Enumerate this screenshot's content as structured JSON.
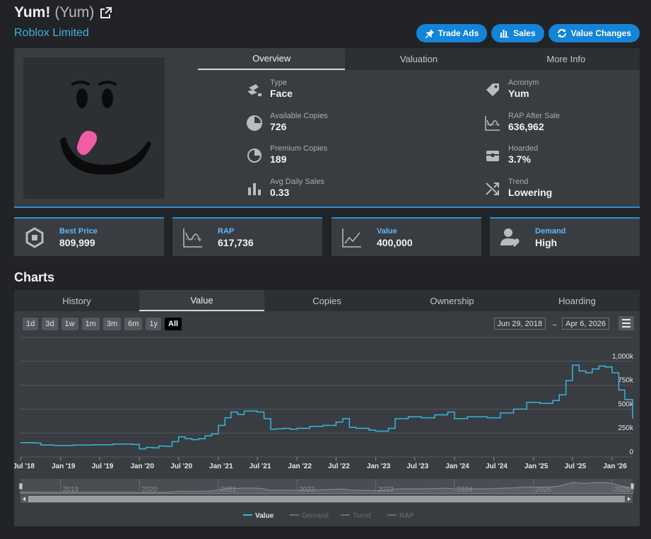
{
  "header": {
    "name": "Yum!",
    "acronym_paren": "(Yum)",
    "subtitle": "Roblox Limited",
    "buttons": [
      {
        "label": "Trade Ads",
        "icon": "pin-icon"
      },
      {
        "label": "Sales",
        "icon": "bar-chart-icon"
      },
      {
        "label": "Value Changes",
        "icon": "sync-icon"
      }
    ]
  },
  "overview_tabs": [
    "Overview",
    "Valuation",
    "More Info"
  ],
  "stats_left": [
    {
      "label": "Type",
      "value": "Face",
      "icon": "hat-icon"
    },
    {
      "label": "Available Copies",
      "value": "726",
      "icon": "pie-icon"
    },
    {
      "label": "Premium Copies",
      "value": "189",
      "icon": "pie-outline-icon"
    },
    {
      "label": "Avg Daily Sales",
      "value": "0.33",
      "icon": "bars-icon"
    }
  ],
  "stats_right": [
    {
      "label": "Acronym",
      "value": "Yum",
      "icon": "tag-icon"
    },
    {
      "label": "RAP After Sale",
      "value": "636,962",
      "icon": "wave-chart-icon"
    },
    {
      "label": "Hoarded",
      "value": "3.7%",
      "icon": "chest-icon"
    },
    {
      "label": "Trend",
      "value": "Lowering",
      "icon": "shuffle-icon"
    }
  ],
  "metrics": [
    {
      "label": "Best Price",
      "value": "809,999",
      "icon": "robux-icon"
    },
    {
      "label": "RAP",
      "value": "617,736",
      "icon": "rap-chart-icon"
    },
    {
      "label": "Value",
      "value": "400,000",
      "icon": "line-chart-icon"
    },
    {
      "label": "Demand",
      "value": "High",
      "icon": "users-heart-icon"
    }
  ],
  "charts": {
    "title": "Charts",
    "tabs": [
      "History",
      "Value",
      "Copies",
      "Ownership",
      "Hoarding"
    ],
    "active_tab": "Value",
    "range_buttons": [
      "1d",
      "3d",
      "1w",
      "1m",
      "3m",
      "6m",
      "1y",
      "All"
    ],
    "active_range": "All",
    "date_from": "Jun 29, 2018",
    "date_to": "Apr 6, 2026",
    "date_arrow": "→"
  },
  "chart_data": {
    "type": "line",
    "series": [
      {
        "name": "Value",
        "color": "#33b8de",
        "points": [
          [
            "2018-06-29",
            150000
          ],
          [
            "2018-09-01",
            145000
          ],
          [
            "2018-10-01",
            125000
          ],
          [
            "2018-12-01",
            120000
          ],
          [
            "2019-03-01",
            125000
          ],
          [
            "2019-06-01",
            128000
          ],
          [
            "2019-09-01",
            135000
          ],
          [
            "2019-12-01",
            130000
          ],
          [
            "2020-01-01",
            85000
          ],
          [
            "2020-02-01",
            100000
          ],
          [
            "2020-03-01",
            95000
          ],
          [
            "2020-04-01",
            115000
          ],
          [
            "2020-05-01",
            110000
          ],
          [
            "2020-06-01",
            160000
          ],
          [
            "2020-07-01",
            210000
          ],
          [
            "2020-08-01",
            190000
          ],
          [
            "2020-09-01",
            180000
          ],
          [
            "2020-10-01",
            190000
          ],
          [
            "2020-11-01",
            220000
          ],
          [
            "2020-12-01",
            240000
          ],
          [
            "2021-01-01",
            330000
          ],
          [
            "2021-02-01",
            410000
          ],
          [
            "2021-03-01",
            470000
          ],
          [
            "2021-04-01",
            445000
          ],
          [
            "2021-05-01",
            480000
          ],
          [
            "2021-06-01",
            480000
          ],
          [
            "2021-07-01",
            470000
          ],
          [
            "2021-08-01",
            400000
          ],
          [
            "2021-09-01",
            290000
          ],
          [
            "2021-10-01",
            295000
          ],
          [
            "2021-11-01",
            300000
          ],
          [
            "2021-12-01",
            290000
          ],
          [
            "2022-01-01",
            300000
          ],
          [
            "2022-03-01",
            320000
          ],
          [
            "2022-05-01",
            330000
          ],
          [
            "2022-07-01",
            365000
          ],
          [
            "2022-08-01",
            400000
          ],
          [
            "2022-09-01",
            310000
          ],
          [
            "2022-10-01",
            300000
          ],
          [
            "2022-12-01",
            280000
          ],
          [
            "2023-01-01",
            270000
          ],
          [
            "2023-03-01",
            300000
          ],
          [
            "2023-04-01",
            400000
          ],
          [
            "2023-06-01",
            420000
          ],
          [
            "2023-08-01",
            410000
          ],
          [
            "2023-10-01",
            440000
          ],
          [
            "2023-12-01",
            470000
          ],
          [
            "2024-01-01",
            400000
          ],
          [
            "2024-03-01",
            420000
          ],
          [
            "2024-06-01",
            410000
          ],
          [
            "2024-08-01",
            460000
          ],
          [
            "2024-10-01",
            500000
          ],
          [
            "2024-12-01",
            570000
          ],
          [
            "2025-02-01",
            560000
          ],
          [
            "2025-04-01",
            590000
          ],
          [
            "2025-05-01",
            650000
          ],
          [
            "2025-06-01",
            800000
          ],
          [
            "2025-07-01",
            960000
          ],
          [
            "2025-08-01",
            900000
          ],
          [
            "2025-09-01",
            880000
          ],
          [
            "2025-10-01",
            920000
          ],
          [
            "2025-11-01",
            950000
          ],
          [
            "2025-12-01",
            940000
          ],
          [
            "2026-01-01",
            880000
          ],
          [
            "2026-02-01",
            700000
          ],
          [
            "2026-03-01",
            600000
          ],
          [
            "2026-04-06",
            400000
          ]
        ]
      }
    ],
    "y_ticks": [
      {
        "value": 0,
        "label": "0"
      },
      {
        "value": 250000,
        "label": "250k"
      },
      {
        "value": 500000,
        "label": "500k"
      },
      {
        "value": 750000,
        "label": "750k"
      },
      {
        "value": 1000000,
        "label": "1,000k"
      }
    ],
    "ylim": [
      0,
      1250000
    ],
    "xlim": [
      "2018-06-29",
      "2026-04-06"
    ],
    "x_ticks": [
      {
        "date": "2018-07-01",
        "label": "Jul '18"
      },
      {
        "date": "2019-01-01",
        "label": "Jan '19"
      },
      {
        "date": "2019-07-01",
        "label": "Jul '19"
      },
      {
        "date": "2020-01-01",
        "label": "Jan '20"
      },
      {
        "date": "2020-07-01",
        "label": "Jul '20"
      },
      {
        "date": "2021-01-01",
        "label": "Jan '21"
      },
      {
        "date": "2021-07-01",
        "label": "Jul '21"
      },
      {
        "date": "2022-01-01",
        "label": "Jan '22"
      },
      {
        "date": "2022-07-01",
        "label": "Jul '22"
      },
      {
        "date": "2023-01-01",
        "label": "Jan '23"
      },
      {
        "date": "2023-07-01",
        "label": "Jul '23"
      },
      {
        "date": "2024-01-01",
        "label": "Jan '24"
      },
      {
        "date": "2024-07-01",
        "label": "Jul '24"
      },
      {
        "date": "2025-01-01",
        "label": "Jan '25"
      },
      {
        "date": "2025-07-01",
        "label": "Jul '25"
      },
      {
        "date": "2026-01-01",
        "label": "Jan '26"
      }
    ],
    "navigator_years": [
      "2019",
      "2020",
      "2021",
      "2022",
      "2023",
      "2024",
      "2025",
      "2026"
    ],
    "legend": [
      {
        "name": "Value",
        "active": true,
        "color": "#33b8de"
      },
      {
        "name": "Demand",
        "active": false,
        "color": "#6a6d72"
      },
      {
        "name": "Trend",
        "active": false,
        "color": "#6a6d72"
      },
      {
        "name": "RAP",
        "active": false,
        "color": "#6a6d72"
      }
    ],
    "grid": true
  }
}
